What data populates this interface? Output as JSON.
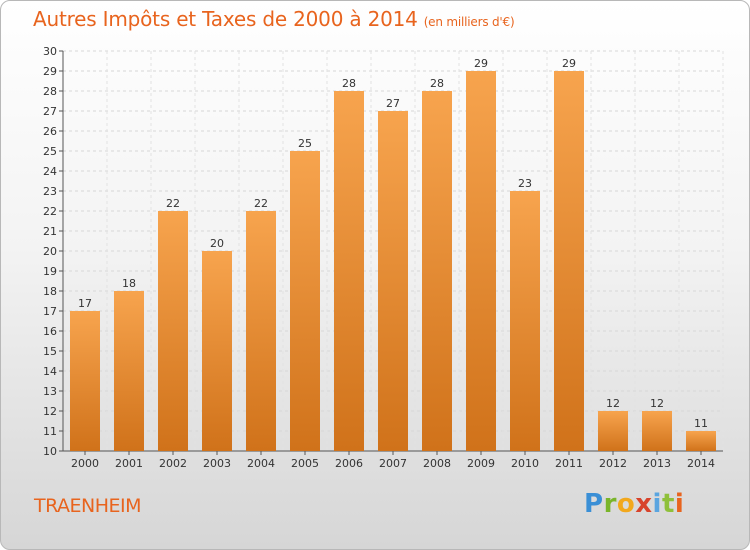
{
  "header": {
    "title": "Autres Impôts et Taxes de 2000 à 2014",
    "subtitle": "(en milliers d'€)"
  },
  "footer": {
    "city": "TRAENHEIM",
    "logo": "Proxiti"
  },
  "colors": {
    "bar_light": "#f7a44e",
    "bar_dark": "#d0721a",
    "accent": "#e8641e"
  },
  "chart_data": {
    "type": "bar",
    "title": "Autres Impôts et Taxes de 2000 à 2014",
    "subtitle": "(en milliers d'€)",
    "xlabel": "",
    "ylabel": "",
    "categories": [
      "2000",
      "2001",
      "2002",
      "2003",
      "2004",
      "2005",
      "2006",
      "2007",
      "2008",
      "2009",
      "2010",
      "2011",
      "2012",
      "2013",
      "2014"
    ],
    "values": [
      17,
      18,
      22,
      20,
      22,
      25,
      28,
      27,
      28,
      29,
      23,
      29,
      12,
      12,
      11
    ],
    "ylim": [
      10,
      30
    ],
    "yticks": [
      10,
      11,
      12,
      13,
      14,
      15,
      16,
      17,
      18,
      19,
      20,
      21,
      22,
      23,
      24,
      25,
      26,
      27,
      28,
      29,
      30
    ],
    "grid": true,
    "data_labels": true
  }
}
